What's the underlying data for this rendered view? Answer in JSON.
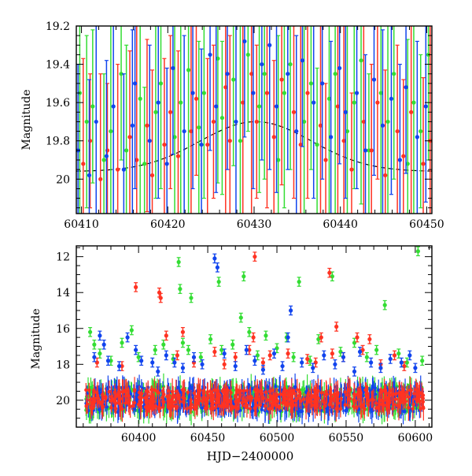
{
  "colors": {
    "green": "#33dd33",
    "red": "#ff3322",
    "blue": "#1144ee",
    "axis": "#000000",
    "model": "#000000"
  },
  "chart_data": [
    {
      "type": "scatter",
      "title": "",
      "xlabel": "",
      "ylabel": "Magnitude",
      "xlim": [
        60409.4,
        60450.6
      ],
      "ylim": [
        20.18,
        19.2
      ],
      "y_inverted": true,
      "grid": false,
      "legend": "none",
      "x_ticks": [
        60410,
        60420,
        60430,
        60440,
        60450
      ],
      "x_tick_labels": [
        "60410",
        "60420",
        "60430",
        "60440",
        "60450"
      ],
      "y_ticks": [
        19.2,
        19.4,
        19.6,
        19.8,
        20
      ],
      "y_tick_labels": [
        "19.2",
        "19.4",
        "19.6",
        "19.8",
        "20"
      ],
      "model_curve": {
        "style": "dashed",
        "amplitude": 0.26,
        "center": 60430.2,
        "baseline": 19.96,
        "sigma": 6.5
      },
      "series": [
        {
          "color": "green",
          "points": [
            [
              60409.8,
              19.55
            ],
            [
              60410.6,
              19.7
            ],
            [
              60411.3,
              19.62
            ],
            [
              60412.6,
              19.9
            ],
            [
              60413.4,
              19.75
            ],
            [
              60414.6,
              19.45
            ],
            [
              60415.2,
              19.85
            ],
            [
              60416.8,
              19.58
            ],
            [
              60417.3,
              19.92
            ],
            [
              60418.6,
              19.65
            ],
            [
              60419.2,
              19.5
            ],
            [
              60420.8,
              19.78
            ],
            [
              60421.5,
              19.6
            ],
            [
              60422.4,
              19.43
            ],
            [
              60423.6,
              19.73
            ],
            [
              60424.2,
              19.55
            ],
            [
              60425.8,
              19.37
            ],
            [
              60426.3,
              19.68
            ],
            [
              60427.6,
              19.48
            ],
            [
              60428.4,
              19.8
            ],
            [
              60429.3,
              19.35
            ],
            [
              60430.6,
              19.62
            ],
            [
              60431.2,
              19.45
            ],
            [
              60432.8,
              19.9
            ],
            [
              60433.5,
              19.55
            ],
            [
              60434.2,
              19.4
            ],
            [
              60435.8,
              19.7
            ],
            [
              60436.6,
              19.5
            ],
            [
              60437.3,
              19.82
            ],
            [
              60438.7,
              19.58
            ],
            [
              60439.4,
              19.45
            ],
            [
              60440.8,
              19.75
            ],
            [
              60441.6,
              19.6
            ],
            [
              60442.4,
              19.38
            ],
            [
              60443.3,
              19.85
            ],
            [
              60444.7,
              19.55
            ],
            [
              60445.5,
              19.7
            ],
            [
              60446.2,
              19.45
            ],
            [
              60447.8,
              19.92
            ],
            [
              60448.5,
              19.6
            ],
            [
              60449.3,
              19.75
            ],
            [
              60450.2,
              19.35
            ]
          ]
        },
        {
          "color": "red",
          "points": [
            [
              60410.2,
              19.92
            ],
            [
              60411.0,
              19.8
            ],
            [
              60412.2,
              20.0
            ],
            [
              60413.0,
              19.85
            ],
            [
              60414.2,
              19.95
            ],
            [
              60415.6,
              19.78
            ],
            [
              60416.4,
              19.9
            ],
            [
              60417.6,
              19.72
            ],
            [
              60418.2,
              19.98
            ],
            [
              60419.6,
              19.82
            ],
            [
              60420.3,
              19.65
            ],
            [
              60421.2,
              19.88
            ],
            [
              60422.7,
              19.75
            ],
            [
              60423.3,
              19.58
            ],
            [
              60424.6,
              19.82
            ],
            [
              60425.3,
              19.7
            ],
            [
              60426.7,
              19.52
            ],
            [
              60427.2,
              19.8
            ],
            [
              60428.7,
              19.6
            ],
            [
              60429.7,
              19.45
            ],
            [
              60430.3,
              19.7
            ],
            [
              60431.5,
              19.55
            ],
            [
              60432.3,
              19.78
            ],
            [
              60433.2,
              19.48
            ],
            [
              60434.6,
              19.65
            ],
            [
              60435.4,
              19.82
            ],
            [
              60436.2,
              19.55
            ],
            [
              60437.7,
              19.72
            ],
            [
              60438.3,
              19.9
            ],
            [
              60439.7,
              19.62
            ],
            [
              60440.4,
              19.8
            ],
            [
              60441.3,
              19.95
            ],
            [
              60442.7,
              19.7
            ],
            [
              60443.6,
              19.85
            ],
            [
              60444.3,
              19.6
            ],
            [
              60445.2,
              19.98
            ],
            [
              60446.6,
              19.75
            ],
            [
              60447.3,
              19.88
            ],
            [
              60448.2,
              19.65
            ],
            [
              60449.6,
              19.92
            ],
            [
              60450.4,
              19.8
            ]
          ]
        },
        {
          "color": "blue",
          "points": [
            [
              60409.6,
              19.85
            ],
            [
              60410.9,
              19.98
            ],
            [
              60411.7,
              19.7
            ],
            [
              60412.9,
              19.88
            ],
            [
              60413.7,
              19.62
            ],
            [
              60414.9,
              19.95
            ],
            [
              60415.9,
              19.72
            ],
            [
              60416.2,
              19.5
            ],
            [
              60417.9,
              19.8
            ],
            [
              60418.9,
              19.6
            ],
            [
              60419.9,
              19.92
            ],
            [
              60420.6,
              19.42
            ],
            [
              60421.9,
              19.75
            ],
            [
              60422.9,
              19.55
            ],
            [
              60423.9,
              19.82
            ],
            [
              60424.9,
              19.35
            ],
            [
              60425.6,
              19.62
            ],
            [
              60426.9,
              19.45
            ],
            [
              60427.9,
              19.7
            ],
            [
              60428.9,
              19.28
            ],
            [
              60429.9,
              19.55
            ],
            [
              60430.9,
              19.4
            ],
            [
              60431.8,
              19.3
            ],
            [
              60432.6,
              19.62
            ],
            [
              60433.9,
              19.45
            ],
            [
              60434.9,
              19.75
            ],
            [
              60435.6,
              19.38
            ],
            [
              60436.9,
              19.6
            ],
            [
              60437.9,
              19.5
            ],
            [
              60438.9,
              19.78
            ],
            [
              60439.9,
              19.42
            ],
            [
              60440.6,
              19.65
            ],
            [
              60441.9,
              19.55
            ],
            [
              60442.9,
              19.85
            ],
            [
              60443.9,
              19.48
            ],
            [
              60444.9,
              19.72
            ],
            [
              60445.9,
              19.58
            ],
            [
              60446.9,
              19.9
            ],
            [
              60447.6,
              19.52
            ],
            [
              60448.9,
              19.78
            ],
            [
              60449.9,
              19.62
            ]
          ]
        }
      ]
    },
    {
      "type": "scatter",
      "title": "",
      "xlabel": "HJD−2400000",
      "ylabel": "Magnitude",
      "xlim": [
        60355,
        60612
      ],
      "ylim": [
        21.5,
        11.4
      ],
      "y_inverted": true,
      "grid": false,
      "legend": "none",
      "x_ticks": [
        60400,
        60450,
        60500,
        60550,
        60600
      ],
      "x_tick_labels": [
        "60400",
        "60450",
        "60500",
        "60550",
        "60600"
      ],
      "y_ticks": [
        12,
        14,
        16,
        18,
        20
      ],
      "y_tick_labels": [
        "12",
        "14",
        "16",
        "18",
        "20"
      ],
      "band": {
        "x_start": 60362,
        "x_end": 60606,
        "base": 19.95,
        "spread": 0.9
      },
      "series": [
        {
          "color": "green",
          "points": [
            [
              60365,
              16.2
            ],
            [
              60368,
              16.9
            ],
            [
              60372,
              17.4
            ],
            [
              60380,
              17.8
            ],
            [
              60388,
              16.8
            ],
            [
              60395,
              16.1
            ],
            [
              60400,
              17.6
            ],
            [
              60412,
              17.2
            ],
            [
              60418,
              16.9
            ],
            [
              60425,
              17.7
            ],
            [
              60429,
              12.3
            ],
            [
              60430,
              13.8
            ],
            [
              60432,
              16.8
            ],
            [
              60436,
              17.2
            ],
            [
              60438,
              14.3
            ],
            [
              60445,
              17.6
            ],
            [
              60452,
              16.6
            ],
            [
              60458,
              13.4
            ],
            [
              60460,
              17.2
            ],
            [
              60468,
              16.9
            ],
            [
              60474,
              15.4
            ],
            [
              60476,
              13.1
            ],
            [
              60480,
              16.2
            ],
            [
              60486,
              17.5
            ],
            [
              60492,
              16.4
            ],
            [
              60500,
              17.1
            ],
            [
              60507,
              16.5
            ],
            [
              60512,
              17.6
            ],
            [
              60516,
              13.4
            ],
            [
              60524,
              17.8
            ],
            [
              60530,
              16.6
            ],
            [
              60540,
              13.1
            ],
            [
              60546,
              17.3
            ],
            [
              60556,
              16.8
            ],
            [
              60565,
              17.6
            ],
            [
              60572,
              17.2
            ],
            [
              60578,
              14.7
            ],
            [
              60588,
              17.4
            ],
            [
              60594,
              17.9
            ],
            [
              60602,
              11.7
            ],
            [
              60605,
              17.8
            ]
          ]
        },
        {
          "color": "red",
          "points": [
            [
              60370,
              17.9
            ],
            [
              60388,
              18.1
            ],
            [
              60398,
              13.7
            ],
            [
              60415,
              14.0
            ],
            [
              60416,
              14.3
            ],
            [
              60420,
              16.4
            ],
            [
              60428,
              17.5
            ],
            [
              60432,
              16.2
            ],
            [
              60440,
              17.9
            ],
            [
              60455,
              17.3
            ],
            [
              60462,
              18.0
            ],
            [
              60470,
              17.6
            ],
            [
              60480,
              17.2
            ],
            [
              60483,
              16.5
            ],
            [
              60484,
              12.0
            ],
            [
              60490,
              17.9
            ],
            [
              60495,
              17.5
            ],
            [
              60508,
              17.4
            ],
            [
              60522,
              17.7
            ],
            [
              60528,
              17.9
            ],
            [
              60532,
              16.5
            ],
            [
              60538,
              12.9
            ],
            [
              60540,
              17.4
            ],
            [
              60543,
              15.9
            ],
            [
              60548,
              17.6
            ],
            [
              60558,
              16.5
            ],
            [
              60562,
              17.2
            ],
            [
              60567,
              16.6
            ],
            [
              60575,
              18.0
            ],
            [
              60585,
              17.5
            ],
            [
              60592,
              18.1
            ]
          ]
        },
        {
          "color": "blue",
          "points": [
            [
              60368,
              17.6
            ],
            [
              60372,
              16.4
            ],
            [
              60375,
              16.9
            ],
            [
              60378,
              17.8
            ],
            [
              60386,
              18.1
            ],
            [
              60392,
              16.5
            ],
            [
              60398,
              17.2
            ],
            [
              60402,
              17.8
            ],
            [
              60410,
              17.9
            ],
            [
              60414,
              18.4
            ],
            [
              60420,
              17.5
            ],
            [
              60426,
              17.9
            ],
            [
              60432,
              18.2
            ],
            [
              60440,
              17.6
            ],
            [
              60446,
              18.0
            ],
            [
              60455,
              12.1
            ],
            [
              60457,
              12.6
            ],
            [
              60462,
              17.4
            ],
            [
              60470,
              18.1
            ],
            [
              60478,
              17.2
            ],
            [
              60484,
              17.8
            ],
            [
              60490,
              18.3
            ],
            [
              60498,
              17.4
            ],
            [
              60504,
              18.1
            ],
            [
              60508,
              16.5
            ],
            [
              60510,
              15.0
            ],
            [
              60518,
              17.9
            ],
            [
              60526,
              18.2
            ],
            [
              60534,
              17.5
            ],
            [
              60542,
              18.0
            ],
            [
              60548,
              17.6
            ],
            [
              60556,
              18.4
            ],
            [
              60560,
              17.3
            ],
            [
              60568,
              17.9
            ],
            [
              60575,
              18.2
            ],
            [
              60582,
              17.7
            ],
            [
              60590,
              17.9
            ],
            [
              60596,
              17.5
            ],
            [
              60600,
              18.2
            ]
          ]
        }
      ]
    }
  ]
}
